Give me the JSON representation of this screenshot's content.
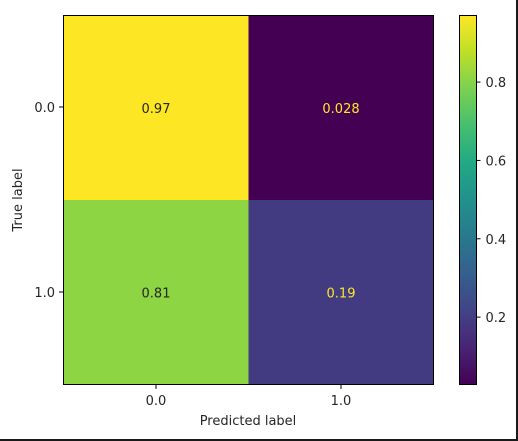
{
  "chart_data": {
    "type": "heatmap",
    "title": "",
    "xlabel": "Predicted label",
    "ylabel": "True label",
    "x_categories": [
      "0.0",
      "1.0"
    ],
    "y_categories": [
      "0.0",
      "1.0"
    ],
    "values": [
      [
        0.97,
        0.028
      ],
      [
        0.81,
        0.19
      ]
    ],
    "value_labels": [
      [
        "0.97",
        "0.028"
      ],
      [
        "0.81",
        "0.19"
      ]
    ],
    "colormap": "viridis",
    "colorbar": {
      "range": [
        0.028,
        0.97
      ],
      "ticks": [
        0.2,
        0.4,
        0.6,
        0.8
      ],
      "tick_labels": [
        "0.2",
        "0.4",
        "0.6",
        "0.8"
      ]
    },
    "cell_text_colors": {
      "on_light": "#262626",
      "on_dark": "#fde725"
    },
    "grid": false
  }
}
